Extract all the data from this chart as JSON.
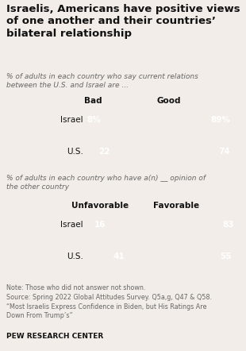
{
  "title": "Israelis, Americans have positive views\nof one another and their countries’\nbilateral relationship",
  "subtitle1": "% of adults in each country who say current relations\nbetween the U.S. and Israel are ...",
  "subtitle2": "% of adults in each country who have a(n) __ opinion of\nthe other country",
  "chart1": {
    "categories": [
      "Israel",
      "U.S."
    ],
    "bad": [
      8,
      22
    ],
    "good": [
      89,
      74
    ],
    "label1": "Bad",
    "label2": "Good",
    "val_fmt": [
      true,
      false
    ]
  },
  "chart2": {
    "categories": [
      "Israel",
      "U.S."
    ],
    "unfavorable": [
      16,
      41
    ],
    "favorable": [
      83,
      55
    ],
    "label1": "Unfavorable",
    "label2": "Favorable"
  },
  "color_blue": "#2e4b7b",
  "color_green": "#7d8c35",
  "note": "Note: Those who did not answer not shown.\nSource: Spring 2022 Global Attitudes Survey. Q5a,g, Q47 & Q58.\n“Most Israelis Express Confidence in Biden, but His Ratings Are\nDown From Trump’s”",
  "footer": "PEW RESEARCH CENTER",
  "bg_color": "#f2ede8",
  "title_color": "#111111",
  "subtitle_color": "#666666"
}
